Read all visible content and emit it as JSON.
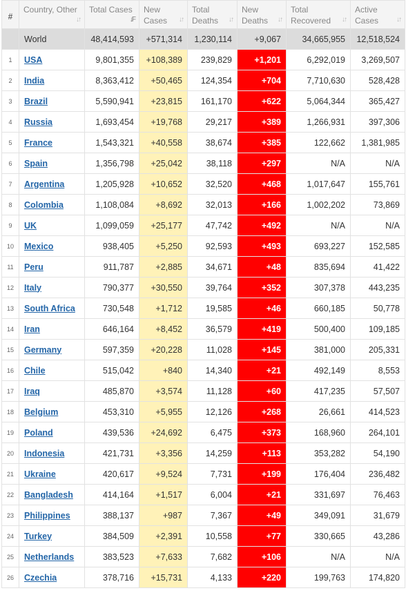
{
  "headers": [
    {
      "label": "#",
      "sortable": false
    },
    {
      "label": "Country, Other",
      "sortable": true
    },
    {
      "label": "Total Cases",
      "sortable": true,
      "active": true
    },
    {
      "label": "New Cases",
      "sortable": true
    },
    {
      "label": "Total Deaths",
      "sortable": true
    },
    {
      "label": "New Deaths",
      "sortable": true
    },
    {
      "label": "Total Recovered",
      "sortable": true
    },
    {
      "label": "Active Cases",
      "sortable": true
    }
  ],
  "world": {
    "country": "World",
    "total_cases": "48,414,593",
    "new_cases": "+571,314",
    "total_deaths": "1,230,114",
    "new_deaths": "+9,067",
    "total_recovered": "34,665,955",
    "active_cases": "12,518,524"
  },
  "rows": [
    {
      "rank": "1",
      "country": "USA",
      "total_cases": "9,801,355",
      "new_cases": "+108,389",
      "total_deaths": "239,829",
      "new_deaths": "+1,201",
      "total_recovered": "6,292,019",
      "active_cases": "3,269,507"
    },
    {
      "rank": "2",
      "country": "India",
      "total_cases": "8,363,412",
      "new_cases": "+50,465",
      "total_deaths": "124,354",
      "new_deaths": "+704",
      "total_recovered": "7,710,630",
      "active_cases": "528,428"
    },
    {
      "rank": "3",
      "country": "Brazil",
      "total_cases": "5,590,941",
      "new_cases": "+23,815",
      "total_deaths": "161,170",
      "new_deaths": "+622",
      "total_recovered": "5,064,344",
      "active_cases": "365,427"
    },
    {
      "rank": "4",
      "country": "Russia",
      "total_cases": "1,693,454",
      "new_cases": "+19,768",
      "total_deaths": "29,217",
      "new_deaths": "+389",
      "total_recovered": "1,266,931",
      "active_cases": "397,306"
    },
    {
      "rank": "5",
      "country": "France",
      "total_cases": "1,543,321",
      "new_cases": "+40,558",
      "total_deaths": "38,674",
      "new_deaths": "+385",
      "total_recovered": "122,662",
      "active_cases": "1,381,985"
    },
    {
      "rank": "6",
      "country": "Spain",
      "total_cases": "1,356,798",
      "new_cases": "+25,042",
      "total_deaths": "38,118",
      "new_deaths": "+297",
      "total_recovered": "N/A",
      "active_cases": "N/A"
    },
    {
      "rank": "7",
      "country": "Argentina",
      "total_cases": "1,205,928",
      "new_cases": "+10,652",
      "total_deaths": "32,520",
      "new_deaths": "+468",
      "total_recovered": "1,017,647",
      "active_cases": "155,761"
    },
    {
      "rank": "8",
      "country": "Colombia",
      "total_cases": "1,108,084",
      "new_cases": "+8,692",
      "total_deaths": "32,013",
      "new_deaths": "+166",
      "total_recovered": "1,002,202",
      "active_cases": "73,869"
    },
    {
      "rank": "9",
      "country": "UK",
      "total_cases": "1,099,059",
      "new_cases": "+25,177",
      "total_deaths": "47,742",
      "new_deaths": "+492",
      "total_recovered": "N/A",
      "active_cases": "N/A"
    },
    {
      "rank": "10",
      "country": "Mexico",
      "total_cases": "938,405",
      "new_cases": "+5,250",
      "total_deaths": "92,593",
      "new_deaths": "+493",
      "total_recovered": "693,227",
      "active_cases": "152,585"
    },
    {
      "rank": "11",
      "country": "Peru",
      "total_cases": "911,787",
      "new_cases": "+2,885",
      "total_deaths": "34,671",
      "new_deaths": "+48",
      "total_recovered": "835,694",
      "active_cases": "41,422"
    },
    {
      "rank": "12",
      "country": "Italy",
      "total_cases": "790,377",
      "new_cases": "+30,550",
      "total_deaths": "39,764",
      "new_deaths": "+352",
      "total_recovered": "307,378",
      "active_cases": "443,235"
    },
    {
      "rank": "13",
      "country": "South Africa",
      "total_cases": "730,548",
      "new_cases": "+1,712",
      "total_deaths": "19,585",
      "new_deaths": "+46",
      "total_recovered": "660,185",
      "active_cases": "50,778"
    },
    {
      "rank": "14",
      "country": "Iran",
      "total_cases": "646,164",
      "new_cases": "+8,452",
      "total_deaths": "36,579",
      "new_deaths": "+419",
      "total_recovered": "500,400",
      "active_cases": "109,185"
    },
    {
      "rank": "15",
      "country": "Germany",
      "total_cases": "597,359",
      "new_cases": "+20,228",
      "total_deaths": "11,028",
      "new_deaths": "+145",
      "total_recovered": "381,000",
      "active_cases": "205,331"
    },
    {
      "rank": "16",
      "country": "Chile",
      "total_cases": "515,042",
      "new_cases": "+840",
      "total_deaths": "14,340",
      "new_deaths": "+21",
      "total_recovered": "492,149",
      "active_cases": "8,553"
    },
    {
      "rank": "17",
      "country": "Iraq",
      "total_cases": "485,870",
      "new_cases": "+3,574",
      "total_deaths": "11,128",
      "new_deaths": "+60",
      "total_recovered": "417,235",
      "active_cases": "57,507"
    },
    {
      "rank": "18",
      "country": "Belgium",
      "total_cases": "453,310",
      "new_cases": "+5,955",
      "total_deaths": "12,126",
      "new_deaths": "+268",
      "total_recovered": "26,661",
      "active_cases": "414,523"
    },
    {
      "rank": "19",
      "country": "Poland",
      "total_cases": "439,536",
      "new_cases": "+24,692",
      "total_deaths": "6,475",
      "new_deaths": "+373",
      "total_recovered": "168,960",
      "active_cases": "264,101"
    },
    {
      "rank": "20",
      "country": "Indonesia",
      "total_cases": "421,731",
      "new_cases": "+3,356",
      "total_deaths": "14,259",
      "new_deaths": "+113",
      "total_recovered": "353,282",
      "active_cases": "54,190"
    },
    {
      "rank": "21",
      "country": "Ukraine",
      "total_cases": "420,617",
      "new_cases": "+9,524",
      "total_deaths": "7,731",
      "new_deaths": "+199",
      "total_recovered": "176,404",
      "active_cases": "236,482"
    },
    {
      "rank": "22",
      "country": "Bangladesh",
      "total_cases": "414,164",
      "new_cases": "+1,517",
      "total_deaths": "6,004",
      "new_deaths": "+21",
      "total_recovered": "331,697",
      "active_cases": "76,463"
    },
    {
      "rank": "23",
      "country": "Philippines",
      "total_cases": "388,137",
      "new_cases": "+987",
      "total_deaths": "7,367",
      "new_deaths": "+49",
      "total_recovered": "349,091",
      "active_cases": "31,679"
    },
    {
      "rank": "24",
      "country": "Turkey",
      "total_cases": "384,509",
      "new_cases": "+2,391",
      "total_deaths": "10,558",
      "new_deaths": "+77",
      "total_recovered": "330,665",
      "active_cases": "43,286"
    },
    {
      "rank": "25",
      "country": "Netherlands",
      "total_cases": "383,523",
      "new_cases": "+7,633",
      "total_deaths": "7,682",
      "new_deaths": "+106",
      "total_recovered": "N/A",
      "active_cases": "N/A"
    },
    {
      "rank": "26",
      "country": "Czechia",
      "total_cases": "378,716",
      "new_cases": "+15,731",
      "total_deaths": "4,133",
      "new_deaths": "+220",
      "total_recovered": "199,763",
      "active_cases": "174,820"
    }
  ],
  "colors": {
    "new_cases_bg": "#fff2b8",
    "new_deaths_bg": "#ff0000",
    "world_bg": "#dcdcdc",
    "link": "#2466a8"
  },
  "icons": {
    "sort": "sort-arrows-icon"
  }
}
